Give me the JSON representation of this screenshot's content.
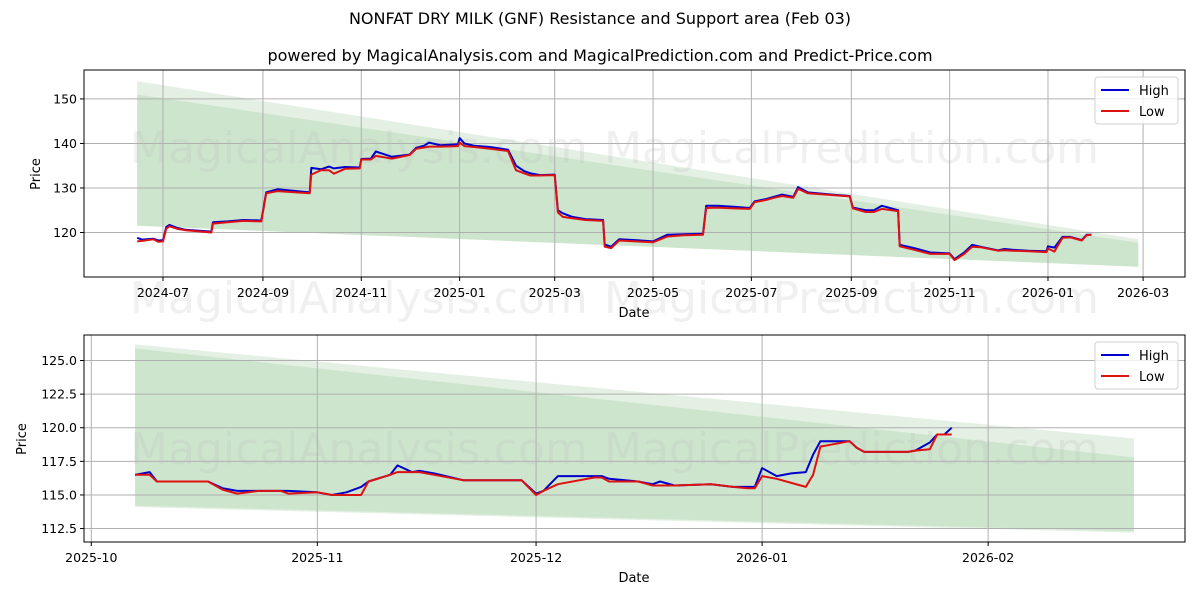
{
  "header": {
    "title": "NONFAT DRY MILK (GNF) Resistance and Support area (Feb 03)",
    "subtitle": "powered by MagicalAnalysis.com and MagicalPrediction.com and Predict-Price.com"
  },
  "watermarks": [
    "MagicalAnalysis.com",
    "MagicalPrediction.com"
  ],
  "colors": {
    "high": "#0000cc",
    "low": "#dd1111",
    "band_outer": "#e3f0e3",
    "band_inner": "#cde5cd",
    "grid": "#b0b0b0"
  },
  "chart_data": [
    {
      "type": "line",
      "title": "Full history",
      "xlabel": "Date",
      "ylabel": "Price",
      "ylim": [
        110.0,
        156.5
      ],
      "xlim": [
        "2024-05-13",
        "2026-03-27"
      ],
      "yticks": [
        120,
        130,
        140,
        150
      ],
      "xticks": [
        "2024-07",
        "2024-09",
        "2024-11",
        "2025-01",
        "2025-03",
        "2025-05",
        "2025-07",
        "2025-09",
        "2025-11",
        "2026-01",
        "2026-03"
      ],
      "grid": true,
      "legend": {
        "position": "upper right",
        "entries": [
          "High",
          "Low"
        ]
      },
      "band": {
        "start": "2024-06-15",
        "end": "2026-02-26",
        "outer_top": [
          154.0,
          118.5
        ],
        "inner_top": [
          151.0,
          117.7
        ],
        "inner_bottom": [
          121.5,
          112.3
        ],
        "outer_bottom": [
          121.8,
          112.5
        ]
      },
      "series": [
        {
          "name": "High",
          "x": [
            "2024-06-15",
            "2024-06-18",
            "2024-06-25",
            "2024-06-28",
            "2024-07-01",
            "2024-07-03",
            "2024-07-05",
            "2024-07-10",
            "2024-07-15",
            "2024-07-31",
            "2024-08-01",
            "2024-08-10",
            "2024-08-20",
            "2024-08-31",
            "2024-09-03",
            "2024-09-10",
            "2024-09-30",
            "2024-10-01",
            "2024-10-07",
            "2024-10-12",
            "2024-10-15",
            "2024-10-22",
            "2024-10-31",
            "2024-11-01",
            "2024-11-07",
            "2024-11-10",
            "2024-11-20",
            "2024-12-01",
            "2024-12-05",
            "2024-12-10",
            "2024-12-13",
            "2024-12-20",
            "2024-12-31",
            "2025-01-01",
            "2025-01-04",
            "2025-01-10",
            "2025-01-20",
            "2025-01-31",
            "2025-02-05",
            "2025-02-10",
            "2025-02-14",
            "2025-02-20",
            "2025-03-01",
            "2025-03-03",
            "2025-03-06",
            "2025-03-12",
            "2025-03-20",
            "2025-03-31",
            "2025-04-01",
            "2025-04-05",
            "2025-04-10",
            "2025-04-20",
            "2025-05-01",
            "2025-05-10",
            "2025-05-20",
            "2025-06-01",
            "2025-06-03",
            "2025-06-10",
            "2025-06-20",
            "2025-06-30",
            "2025-07-03",
            "2025-07-10",
            "2025-07-15",
            "2025-07-20",
            "2025-07-27",
            "2025-07-30",
            "2025-08-05",
            "2025-08-20",
            "2025-08-31",
            "2025-09-02",
            "2025-09-10",
            "2025-09-15",
            "2025-09-20",
            "2025-09-30",
            "2025-10-01",
            "2025-10-10",
            "2025-10-20",
            "2025-11-01",
            "2025-11-04",
            "2025-11-10",
            "2025-11-15",
            "2025-11-20",
            "2025-12-01",
            "2025-12-05",
            "2025-12-10",
            "2025-12-20",
            "2025-12-31",
            "2026-01-01",
            "2026-01-05",
            "2026-01-10",
            "2026-01-15",
            "2026-01-22",
            "2026-01-25",
            "2026-01-28"
          ],
          "values": [
            118.8,
            118.4,
            118.6,
            118.2,
            118.3,
            121.2,
            121.7,
            121.0,
            120.6,
            120.2,
            122.3,
            122.5,
            122.8,
            122.7,
            129.0,
            129.7,
            129.0,
            134.5,
            134.2,
            134.8,
            134.4,
            134.7,
            134.6,
            136.5,
            136.6,
            138.2,
            137.0,
            137.5,
            139.0,
            139.5,
            140.2,
            139.6,
            139.8,
            141.2,
            140.0,
            139.5,
            139.2,
            138.6,
            135.0,
            133.8,
            133.3,
            132.9,
            133.0,
            125.0,
            124.3,
            123.5,
            123.0,
            122.8,
            117.3,
            116.8,
            118.5,
            118.3,
            118.0,
            119.5,
            119.6,
            119.7,
            126.0,
            126.0,
            125.8,
            125.5,
            127.0,
            127.5,
            128.0,
            128.5,
            128.0,
            130.2,
            129.0,
            128.5,
            128.2,
            125.6,
            125.0,
            125.0,
            126.0,
            125.0,
            117.2,
            116.5,
            115.5,
            115.3,
            114.0,
            115.5,
            117.2,
            116.8,
            116.0,
            116.3,
            116.1,
            115.9,
            115.8,
            116.9,
            116.6,
            119.0,
            119.0,
            118.3,
            119.5,
            119.5
          ]
        },
        {
          "name": "Low",
          "x": [
            "2024-06-15",
            "2024-06-18",
            "2024-06-25",
            "2024-06-28",
            "2024-07-01",
            "2024-07-03",
            "2024-07-05",
            "2024-07-10",
            "2024-07-15",
            "2024-07-31",
            "2024-08-01",
            "2024-08-10",
            "2024-08-20",
            "2024-08-31",
            "2024-09-03",
            "2024-09-10",
            "2024-09-30",
            "2024-10-01",
            "2024-10-07",
            "2024-10-12",
            "2024-10-15",
            "2024-10-22",
            "2024-10-31",
            "2024-11-01",
            "2024-11-07",
            "2024-11-10",
            "2024-11-20",
            "2024-12-01",
            "2024-12-05",
            "2024-12-10",
            "2024-12-13",
            "2024-12-20",
            "2024-12-31",
            "2025-01-01",
            "2025-01-04",
            "2025-01-10",
            "2025-01-20",
            "2025-01-31",
            "2025-02-05",
            "2025-02-10",
            "2025-02-14",
            "2025-02-20",
            "2025-03-01",
            "2025-03-03",
            "2025-03-06",
            "2025-03-12",
            "2025-03-20",
            "2025-03-31",
            "2025-04-01",
            "2025-04-05",
            "2025-04-10",
            "2025-04-20",
            "2025-05-01",
            "2025-05-10",
            "2025-05-20",
            "2025-06-01",
            "2025-06-03",
            "2025-06-10",
            "2025-06-20",
            "2025-06-30",
            "2025-07-03",
            "2025-07-10",
            "2025-07-15",
            "2025-07-20",
            "2025-07-27",
            "2025-07-30",
            "2025-08-05",
            "2025-08-20",
            "2025-08-31",
            "2025-09-02",
            "2025-09-10",
            "2025-09-15",
            "2025-09-20",
            "2025-09-30",
            "2025-10-01",
            "2025-10-10",
            "2025-10-20",
            "2025-11-01",
            "2025-11-04",
            "2025-11-10",
            "2025-11-15",
            "2025-11-20",
            "2025-12-01",
            "2025-12-05",
            "2025-12-10",
            "2025-12-20",
            "2025-12-31",
            "2026-01-01",
            "2026-01-05",
            "2026-01-10",
            "2026-01-15",
            "2026-01-22",
            "2026-01-25",
            "2026-01-28"
          ],
          "values": [
            118.0,
            118.1,
            118.5,
            117.9,
            118.0,
            120.8,
            121.4,
            120.8,
            120.5,
            120.0,
            122.0,
            122.3,
            122.6,
            122.5,
            128.8,
            129.3,
            128.8,
            133.0,
            134.0,
            134.0,
            133.2,
            134.3,
            134.4,
            136.4,
            136.4,
            137.2,
            136.6,
            137.4,
            138.8,
            139.1,
            139.3,
            139.3,
            139.4,
            140.2,
            139.4,
            139.2,
            138.8,
            138.3,
            134.0,
            133.3,
            132.8,
            132.8,
            132.9,
            124.5,
            123.5,
            123.2,
            122.8,
            122.6,
            116.8,
            116.5,
            118.2,
            118.0,
            117.8,
            119.1,
            119.4,
            119.5,
            125.5,
            125.6,
            125.4,
            125.3,
            126.8,
            127.3,
            127.8,
            128.2,
            127.8,
            129.8,
            128.8,
            128.4,
            128.1,
            125.4,
            124.6,
            124.6,
            125.3,
            124.8,
            116.9,
            116.1,
            115.2,
            115.2,
            113.8,
            115.2,
            116.8,
            116.7,
            115.9,
            116.0,
            115.9,
            115.8,
            115.6,
            116.4,
            115.7,
            118.8,
            118.9,
            118.2,
            119.4,
            119.5
          ]
        }
      ]
    },
    {
      "type": "line",
      "title": "Recent detail",
      "xlabel": "Date",
      "ylabel": "Price",
      "ylim": [
        111.5,
        126.9
      ],
      "xlim": [
        "2025-09-30",
        "2026-02-28"
      ],
      "yticks": [
        112.5,
        115.0,
        117.5,
        120.0,
        122.5,
        125.0
      ],
      "xticks": [
        "2025-10",
        "2025-11",
        "2025-12",
        "2026-01",
        "2026-02"
      ],
      "grid": true,
      "legend": {
        "position": "upper right",
        "entries": [
          "High",
          "Low"
        ]
      },
      "band": {
        "start": "2025-10-07",
        "end": "2026-02-21",
        "outer_top": [
          126.2,
          119.2
        ],
        "inner_top": [
          125.9,
          117.8
        ],
        "inner_bottom": [
          114.2,
          112.3
        ],
        "outer_bottom": [
          114.1,
          112.2
        ]
      },
      "series": [
        {
          "name": "High",
          "x": [
            "2025-10-07",
            "2025-10-09",
            "2025-10-10",
            "2025-10-12",
            "2025-10-17",
            "2025-10-19",
            "2025-10-21",
            "2025-10-24",
            "2025-10-27",
            "2025-10-28",
            "2025-11-01",
            "2025-11-03",
            "2025-11-05",
            "2025-11-07",
            "2025-11-08",
            "2025-11-11",
            "2025-11-12",
            "2025-11-14",
            "2025-11-15",
            "2025-11-17",
            "2025-11-21",
            "2025-11-22",
            "2025-11-23",
            "2025-11-26",
            "2025-11-29",
            "2025-12-01",
            "2025-12-02",
            "2025-12-04",
            "2025-12-09",
            "2025-12-10",
            "2025-12-11",
            "2025-12-15",
            "2025-12-17",
            "2025-12-18",
            "2025-12-20",
            "2025-12-25",
            "2025-12-28",
            "2025-12-30",
            "2025-12-31",
            "2026-01-01",
            "2026-01-03",
            "2026-01-05",
            "2026-01-07",
            "2026-01-08",
            "2026-01-09",
            "2026-01-13",
            "2026-01-14",
            "2026-01-15",
            "2026-01-20",
            "2026-01-21",
            "2026-01-22",
            "2026-01-24",
            "2026-01-25",
            "2026-01-26",
            "2026-01-27"
          ],
          "values": [
            116.5,
            116.7,
            116.0,
            116.0,
            116.0,
            115.5,
            115.3,
            115.3,
            115.3,
            115.3,
            115.2,
            115.0,
            115.2,
            115.6,
            116.0,
            116.5,
            117.2,
            116.7,
            116.8,
            116.6,
            116.1,
            116.1,
            116.1,
            116.1,
            116.1,
            115.1,
            115.3,
            116.4,
            116.4,
            116.4,
            116.2,
            116.0,
            115.8,
            116.0,
            115.7,
            115.8,
            115.6,
            115.6,
            115.6,
            117.0,
            116.4,
            116.6,
            116.7,
            118.0,
            119.0,
            119.0,
            118.5,
            118.2,
            118.2,
            118.2,
            118.3,
            118.9,
            119.5,
            119.5,
            120.0
          ]
        },
        {
          "name": "Low",
          "x": [
            "2025-10-07",
            "2025-10-09",
            "2025-10-10",
            "2025-10-12",
            "2025-10-17",
            "2025-10-19",
            "2025-10-21",
            "2025-10-24",
            "2025-10-27",
            "2025-10-28",
            "2025-11-01",
            "2025-11-03",
            "2025-11-05",
            "2025-11-07",
            "2025-11-08",
            "2025-11-11",
            "2025-11-12",
            "2025-11-14",
            "2025-11-15",
            "2025-11-17",
            "2025-11-21",
            "2025-11-22",
            "2025-11-23",
            "2025-11-26",
            "2025-11-29",
            "2025-12-01",
            "2025-12-02",
            "2025-12-04",
            "2025-12-09",
            "2025-12-10",
            "2025-12-11",
            "2025-12-15",
            "2025-12-17",
            "2025-12-18",
            "2025-12-20",
            "2025-12-25",
            "2025-12-28",
            "2025-12-30",
            "2025-12-31",
            "2026-01-01",
            "2026-01-03",
            "2026-01-05",
            "2026-01-07",
            "2026-01-08",
            "2026-01-09",
            "2026-01-13",
            "2026-01-14",
            "2026-01-15",
            "2026-01-20",
            "2026-01-21",
            "2026-01-22",
            "2026-01-24",
            "2026-01-25",
            "2026-01-26",
            "2026-01-27"
          ],
          "values": [
            116.5,
            116.5,
            116.0,
            116.0,
            116.0,
            115.4,
            115.1,
            115.3,
            115.3,
            115.1,
            115.2,
            115.0,
            115.0,
            115.0,
            116.0,
            116.5,
            116.7,
            116.7,
            116.7,
            116.5,
            116.1,
            116.1,
            116.1,
            116.1,
            116.1,
            115.0,
            115.3,
            115.8,
            116.3,
            116.3,
            116.0,
            116.0,
            115.7,
            115.7,
            115.7,
            115.8,
            115.6,
            115.5,
            115.5,
            116.4,
            116.2,
            115.9,
            115.6,
            116.5,
            118.6,
            119.0,
            118.5,
            118.2,
            118.2,
            118.2,
            118.3,
            118.4,
            119.5,
            119.5,
            119.5
          ]
        }
      ]
    }
  ]
}
